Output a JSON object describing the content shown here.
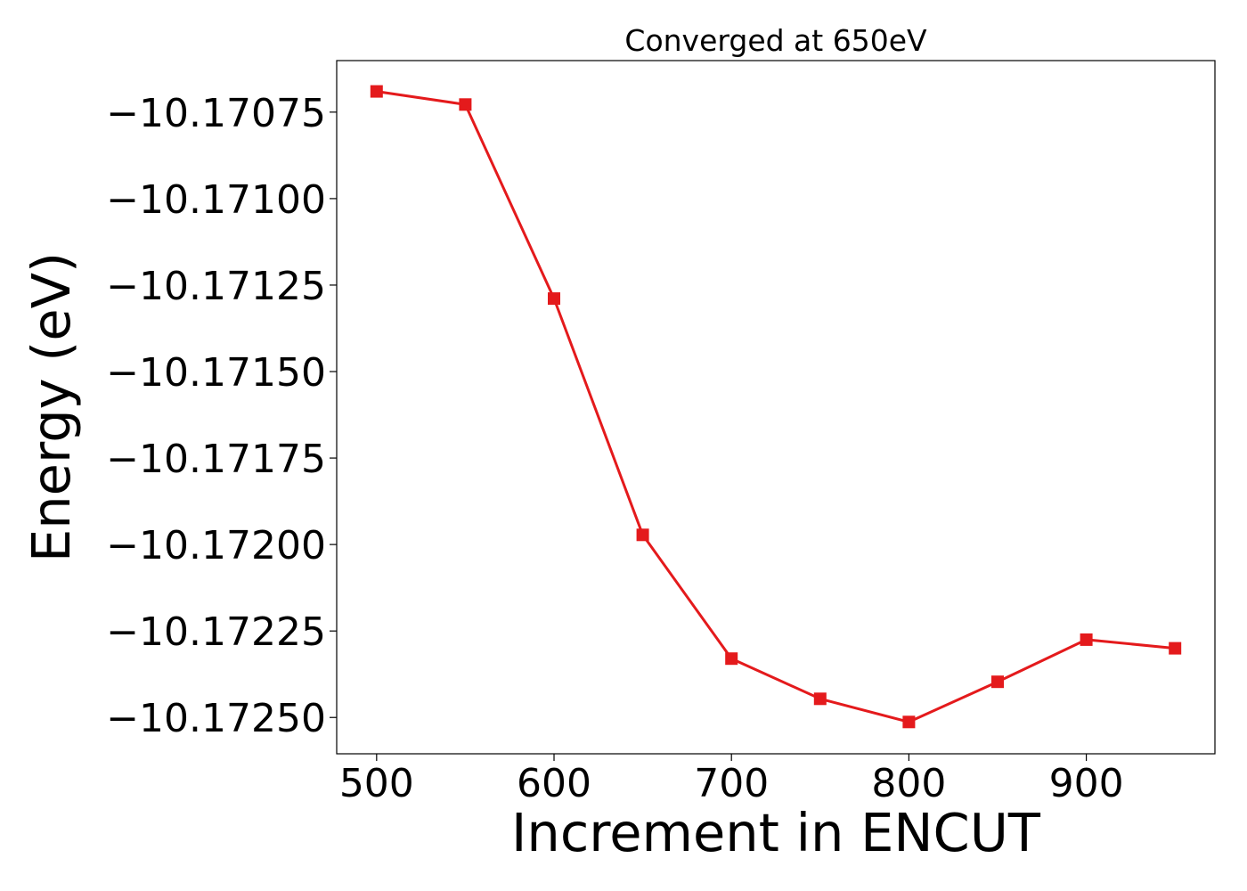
{
  "chart_data": {
    "type": "line",
    "title": "Converged at 650eV",
    "xlabel": "Increment in ENCUT",
    "ylabel": "Energy (eV)",
    "x": [
      500,
      550,
      600,
      650,
      700,
      750,
      800,
      850,
      900,
      950
    ],
    "series": [
      {
        "values": [
          -10.17069,
          -10.170728,
          -10.171289,
          -10.171972,
          -10.17233,
          -10.172446,
          -10.172513,
          -10.172397,
          -10.172275,
          -10.1723
        ],
        "color": "#e41a1c",
        "marker": "square"
      }
    ],
    "xticks": [
      500,
      600,
      700,
      800,
      900
    ],
    "xtick_labels": [
      "500",
      "600",
      "700",
      "800",
      "900"
    ],
    "yticks": [
      -10.17075,
      -10.171,
      -10.17125,
      -10.1715,
      -10.17175,
      -10.172,
      -10.17225,
      -10.1725
    ],
    "ytick_labels": [
      "−10.17075",
      "−10.17100",
      "−10.17125",
      "−10.17150",
      "−10.17175",
      "−10.17200",
      "−10.17225",
      "−10.17250"
    ],
    "xlim": [
      477.5,
      972.5
    ],
    "ylim": [
      -10.172605,
      -10.170601
    ],
    "grid": false,
    "legend": false
  }
}
